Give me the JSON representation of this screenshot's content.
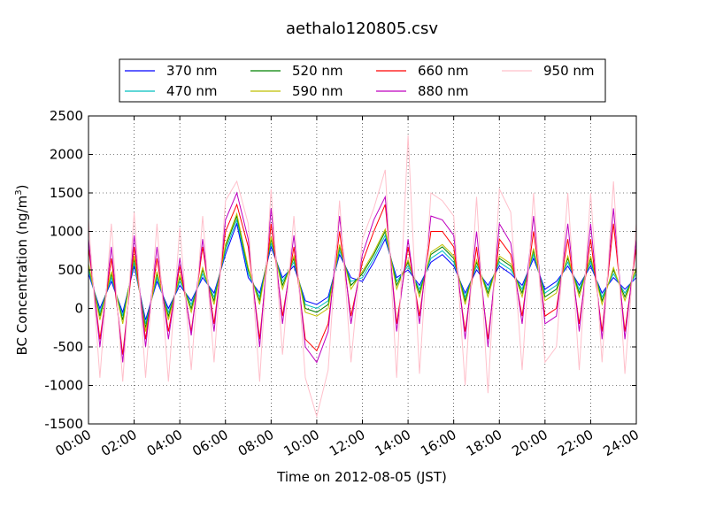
{
  "chart_data": {
    "type": "line",
    "title": "aethalo120805.csv",
    "xlabel": "Time on 2012-08-05 (JST)",
    "ylabel_main": "BC Concentration (ng/m",
    "ylabel_sup": "3",
    "ylabel_close": ")",
    "xlim": [
      "00:00",
      "24:00"
    ],
    "ylim": [
      -1500,
      2500
    ],
    "x_ticks": [
      "00:00",
      "02:00",
      "04:00",
      "06:00",
      "08:00",
      "10:00",
      "12:00",
      "14:00",
      "16:00",
      "18:00",
      "20:00",
      "22:00",
      "24:00"
    ],
    "y_ticks": [
      -1500,
      -1000,
      -500,
      0,
      500,
      1000,
      1500,
      2000,
      2500
    ],
    "grid": true,
    "legend_position": "top-center",
    "x": [
      "00:00",
      "00:30",
      "01:00",
      "01:30",
      "02:00",
      "02:30",
      "03:00",
      "03:30",
      "04:00",
      "04:30",
      "05:00",
      "05:30",
      "06:00",
      "06:30",
      "07:00",
      "07:30",
      "08:00",
      "08:30",
      "09:00",
      "09:30",
      "10:00",
      "10:30",
      "11:00",
      "11:30",
      "12:00",
      "12:30",
      "13:00",
      "13:30",
      "14:00",
      "14:30",
      "15:00",
      "15:30",
      "16:00",
      "16:30",
      "17:00",
      "17:30",
      "18:00",
      "18:30",
      "19:00",
      "19:30",
      "20:00",
      "20:30",
      "21:00",
      "21:30",
      "22:00",
      "22:30",
      "23:00",
      "23:30",
      "24:00"
    ],
    "series": [
      {
        "name": "370 nm",
        "color": "#0000ff",
        "values": [
          450,
          0,
          350,
          -50,
          550,
          -150,
          350,
          0,
          300,
          100,
          400,
          200,
          700,
          1100,
          400,
          200,
          800,
          400,
          550,
          100,
          50,
          150,
          700,
          400,
          350,
          600,
          900,
          400,
          500,
          300,
          600,
          700,
          550,
          200,
          500,
          300,
          550,
          450,
          300,
          650,
          250,
          350,
          550,
          300,
          550,
          200,
          400,
          250,
          400
        ]
      },
      {
        "name": "470 nm",
        "color": "#00bfbf",
        "values": [
          500,
          -50,
          400,
          -100,
          600,
          -200,
          400,
          -50,
          350,
          50,
          450,
          150,
          750,
          1150,
          450,
          150,
          850,
          350,
          600,
          50,
          0,
          100,
          750,
          350,
          400,
          650,
          950,
          350,
          550,
          250,
          650,
          750,
          600,
          150,
          550,
          250,
          600,
          500,
          250,
          700,
          200,
          300,
          600,
          250,
          600,
          150,
          450,
          200,
          450
        ]
      },
      {
        "name": "520 nm",
        "color": "#008000",
        "values": [
          550,
          -100,
          450,
          -150,
          650,
          -250,
          450,
          -100,
          400,
          0,
          500,
          100,
          800,
          1200,
          500,
          100,
          900,
          300,
          650,
          0,
          -50,
          50,
          800,
          300,
          450,
          700,
          1000,
          300,
          600,
          200,
          700,
          800,
          650,
          100,
          600,
          200,
          650,
          550,
          200,
          750,
          150,
          250,
          650,
          200,
          650,
          100,
          500,
          150,
          500
        ]
      },
      {
        "name": "590 nm",
        "color": "#bfbf00",
        "values": [
          580,
          -150,
          480,
          -200,
          680,
          -300,
          480,
          -150,
          430,
          -50,
          530,
          50,
          830,
          1230,
          530,
          50,
          930,
          250,
          680,
          -50,
          -100,
          0,
          830,
          250,
          480,
          730,
          1030,
          250,
          630,
          150,
          730,
          830,
          680,
          50,
          630,
          150,
          680,
          580,
          150,
          780,
          100,
          200,
          680,
          150,
          680,
          50,
          530,
          100,
          530
        ]
      },
      {
        "name": "660 nm",
        "color": "#ff0000",
        "values": [
          800,
          -400,
          650,
          -600,
          800,
          -400,
          650,
          -300,
          550,
          -300,
          800,
          -200,
          1000,
          1350,
          800,
          -400,
          1100,
          -100,
          800,
          -400,
          -550,
          -200,
          1000,
          -100,
          600,
          1000,
          1350,
          -200,
          800,
          -100,
          1000,
          1000,
          800,
          -300,
          800,
          -400,
          900,
          700,
          -100,
          1000,
          -100,
          0,
          900,
          -200,
          900,
          -300,
          1100,
          -300,
          800
        ]
      },
      {
        "name": "880 nm",
        "color": "#bf00bf",
        "values": [
          900,
          -500,
          800,
          -700,
          950,
          -500,
          800,
          -400,
          650,
          -350,
          900,
          -300,
          1150,
          1500,
          900,
          -500,
          1300,
          -200,
          950,
          -500,
          -700,
          -300,
          1200,
          -200,
          700,
          1150,
          1450,
          -300,
          900,
          -200,
          1200,
          1150,
          950,
          -400,
          1000,
          -500,
          1100,
          850,
          -200,
          1200,
          -200,
          -100,
          1100,
          -300,
          1100,
          -400,
          1300,
          -400,
          900
        ]
      },
      {
        "name": "950 nm",
        "color": "#ffc0cb",
        "values": [
          1150,
          -900,
          1100,
          -950,
          1250,
          -900,
          1100,
          -950,
          1050,
          -800,
          1200,
          -700,
          1400,
          1650,
          1100,
          -950,
          1550,
          -600,
          1200,
          -900,
          -1400,
          -800,
          1400,
          -700,
          900,
          1300,
          1800,
          -900,
          2250,
          -850,
          1500,
          1400,
          1200,
          -1000,
          1450,
          -1100,
          1550,
          1250,
          -800,
          1500,
          -700,
          -500,
          1500,
          -800,
          1500,
          -700,
          1650,
          -850,
          1100
        ]
      }
    ]
  }
}
